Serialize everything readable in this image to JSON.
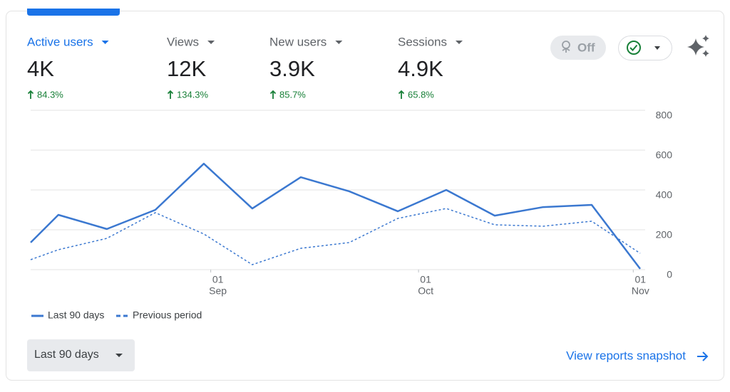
{
  "metrics": [
    {
      "label": "Active users",
      "value": "4K",
      "change": "84.3%"
    },
    {
      "label": "Views",
      "value": "12K",
      "change": "134.3%"
    },
    {
      "label": "New users",
      "value": "3.9K",
      "change": "85.7%"
    },
    {
      "label": "Sessions",
      "value": "4.9K",
      "change": "65.8%"
    }
  ],
  "toggle": "Off",
  "chart_data": {
    "type": "line",
    "x": [
      0,
      4,
      11,
      18,
      25,
      32,
      39,
      46,
      53,
      60,
      67,
      74,
      81,
      88
    ],
    "xlim": [
      0,
      88
    ],
    "xticks": [
      {
        "value": 26,
        "label": [
          "01",
          "Sep"
        ]
      },
      {
        "value": 56,
        "label": [
          "01",
          "Oct"
        ]
      },
      {
        "value": 87,
        "label": [
          "01",
          "Nov"
        ]
      }
    ],
    "ylim": [
      0,
      800
    ],
    "yticks": [
      0,
      200,
      400,
      600,
      800
    ],
    "grid": true,
    "series": [
      {
        "name": "Last 90 days",
        "color": "#3b78d0",
        "style": "solid",
        "values": [
          136,
          275,
          204,
          300,
          532,
          307,
          464,
          393,
          293,
          400,
          271,
          314,
          325,
          4
        ]
      },
      {
        "name": "Previous period",
        "color": "#3b78d0",
        "style": "dashed",
        "values": [
          50,
          100,
          157,
          286,
          179,
          25,
          107,
          136,
          257,
          307,
          225,
          218,
          243,
          82
        ]
      }
    ]
  },
  "date_range": "Last 90 days",
  "link": "View reports snapshot"
}
